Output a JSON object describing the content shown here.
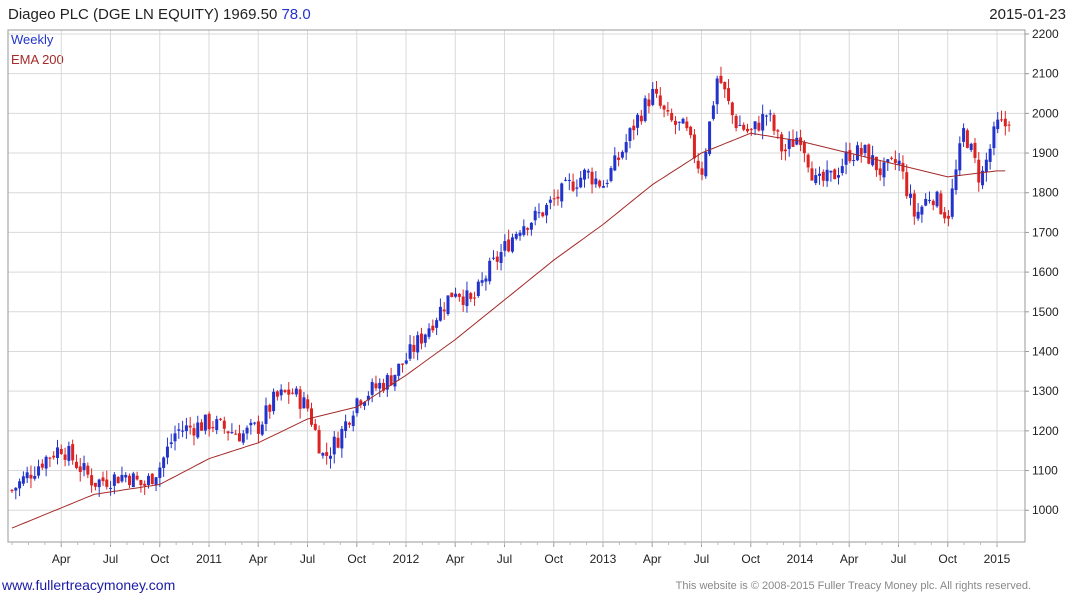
{
  "header": {
    "title": "Diageo PLC (DGE LN EQUITY) 1969.50",
    "change": "78.0",
    "date": "2015-01-23"
  },
  "legend": {
    "series1": "Weekly",
    "series2": "EMA 200"
  },
  "footer": {
    "site": "www.fullertreacymoney.com",
    "copyright": "This website is © 2008-2015 Fuller Treacy Money plc. All rights reserved."
  },
  "colors": {
    "up": "#2233cc",
    "down": "#dd2222",
    "ema": "#a52a2a",
    "grid": "#d9d9d9",
    "axis": "#999999"
  },
  "chart_data": {
    "type": "candlestick",
    "x_ticks": [
      "Apr",
      "Jul",
      "Oct",
      "2011",
      "Apr",
      "Jul",
      "Oct",
      "2012",
      "Apr",
      "Jul",
      "Oct",
      "2013",
      "Apr",
      "Jul",
      "Oct",
      "2014",
      "Apr",
      "Jul",
      "Oct",
      "2015"
    ],
    "y_ticks": [
      1000,
      1100,
      1200,
      1300,
      1400,
      1500,
      1600,
      1700,
      1800,
      1900,
      2000,
      2100,
      2200
    ],
    "ylim": [
      920,
      2210
    ],
    "x_range": [
      "2010-01",
      "2015-01-23"
    ],
    "series": [
      {
        "name": "Weekly",
        "kind": "candlestick",
        "key_closes": [
          [
            "2010-01",
            1050
          ],
          [
            "2010-03",
            1130
          ],
          [
            "2010-04",
            1160
          ],
          [
            "2010-06",
            1070
          ],
          [
            "2010-08",
            1090
          ],
          [
            "2010-09",
            1060
          ],
          [
            "2010-10",
            1110
          ],
          [
            "2010-11",
            1200
          ],
          [
            "2011-01",
            1220
          ],
          [
            "2011-03",
            1190
          ],
          [
            "2011-04",
            1210
          ],
          [
            "2011-05",
            1280
          ],
          [
            "2011-06",
            1300
          ],
          [
            "2011-07",
            1260
          ],
          [
            "2011-08",
            1130
          ],
          [
            "2011-09",
            1190
          ],
          [
            "2011-10",
            1280
          ],
          [
            "2011-12",
            1330
          ],
          [
            "2012-01",
            1380
          ],
          [
            "2012-02",
            1440
          ],
          [
            "2012-03",
            1500
          ],
          [
            "2012-04",
            1560
          ],
          [
            "2012-05",
            1520
          ],
          [
            "2012-06",
            1600
          ],
          [
            "2012-07",
            1660
          ],
          [
            "2012-08",
            1720
          ],
          [
            "2012-09",
            1740
          ],
          [
            "2012-10",
            1780
          ],
          [
            "2012-11",
            1820
          ],
          [
            "2012-12",
            1850
          ],
          [
            "2013-01",
            1820
          ],
          [
            "2013-02",
            1890
          ],
          [
            "2013-03",
            1980
          ],
          [
            "2013-04",
            2050
          ],
          [
            "2013-05",
            1980
          ],
          [
            "2013-06",
            1960
          ],
          [
            "2013-07",
            1850
          ],
          [
            "2013-08",
            2100
          ],
          [
            "2013-09",
            1980
          ],
          [
            "2013-10",
            1950
          ],
          [
            "2013-11",
            2000
          ],
          [
            "2013-12",
            1900
          ],
          [
            "2014-01",
            1950
          ],
          [
            "2014-02",
            1820
          ],
          [
            "2014-03",
            1840
          ],
          [
            "2014-04",
            1900
          ],
          [
            "2014-05",
            1900
          ],
          [
            "2014-06",
            1850
          ],
          [
            "2014-07",
            1880
          ],
          [
            "2014-08",
            1740
          ],
          [
            "2014-09",
            1800
          ],
          [
            "2014-10",
            1740
          ],
          [
            "2014-11",
            1960
          ],
          [
            "2014-12",
            1830
          ],
          [
            "2015-01",
            1969.5
          ]
        ]
      },
      {
        "name": "EMA 200",
        "kind": "line",
        "points": [
          [
            "2010-01",
            955
          ],
          [
            "2010-06",
            1040
          ],
          [
            "2010-10",
            1065
          ],
          [
            "2011-01",
            1130
          ],
          [
            "2011-04",
            1170
          ],
          [
            "2011-07",
            1230
          ],
          [
            "2011-10",
            1260
          ],
          [
            "2012-01",
            1340
          ],
          [
            "2012-04",
            1430
          ],
          [
            "2012-07",
            1530
          ],
          [
            "2012-10",
            1630
          ],
          [
            "2013-01",
            1720
          ],
          [
            "2013-04",
            1820
          ],
          [
            "2013-07",
            1900
          ],
          [
            "2013-10",
            1950
          ],
          [
            "2014-01",
            1930
          ],
          [
            "2014-04",
            1900
          ],
          [
            "2014-07",
            1870
          ],
          [
            "2014-10",
            1840
          ],
          [
            "2015-01",
            1855
          ]
        ]
      }
    ]
  }
}
